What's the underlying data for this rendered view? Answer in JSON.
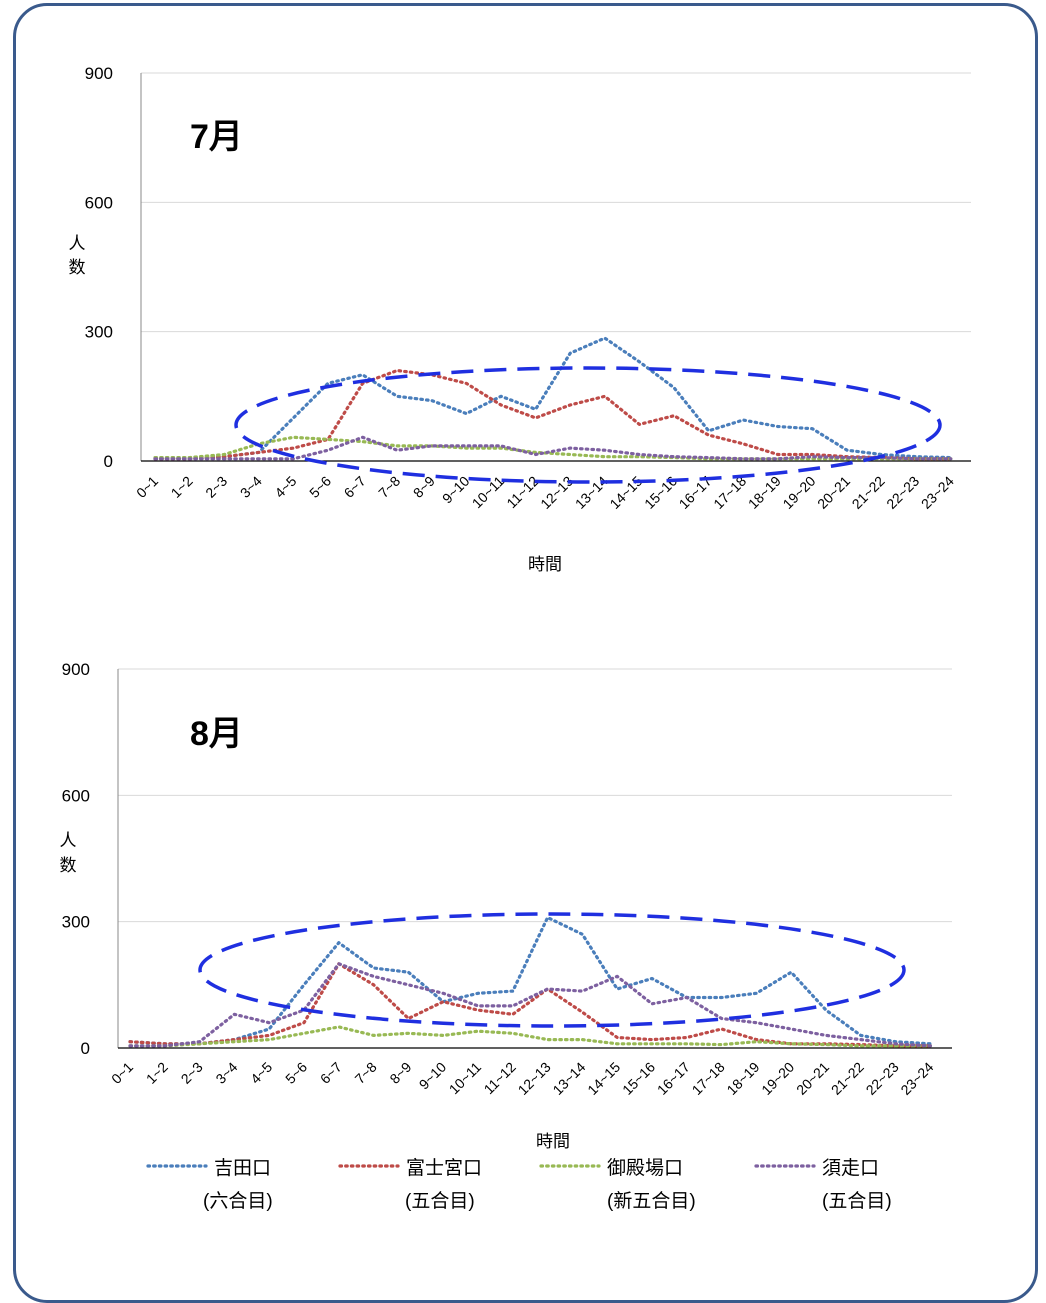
{
  "chart_data": [
    {
      "type": "line",
      "title": "7月",
      "xlabel": "時間",
      "ylabel": "人数",
      "ylim": [
        0,
        900
      ],
      "yticks": [
        0,
        300,
        600,
        900
      ],
      "grid": true,
      "categories": [
        "0~1",
        "1~2",
        "2~3",
        "3~4",
        "4~5",
        "5~6",
        "6~7",
        "7~8",
        "8~9",
        "9~10",
        "10~11",
        "11~12",
        "12~13",
        "13~14",
        "14~15",
        "15~16",
        "16~17",
        "17~18",
        "18~19",
        "19~20",
        "20~21",
        "21~22",
        "22~23",
        "23~24"
      ],
      "series": [
        {
          "name": "吉田口",
          "values": [
            5,
            5,
            10,
            20,
            100,
            180,
            200,
            150,
            140,
            110,
            150,
            120,
            250,
            285,
            230,
            170,
            70,
            95,
            80,
            75,
            25,
            15,
            10,
            8
          ]
        },
        {
          "name": "富士宮口",
          "values": [
            5,
            5,
            10,
            20,
            30,
            50,
            180,
            210,
            200,
            180,
            130,
            100,
            130,
            150,
            85,
            105,
            60,
            40,
            15,
            15,
            10,
            8,
            5,
            5
          ]
        },
        {
          "name": "御殿場口",
          "values": [
            8,
            8,
            15,
            40,
            55,
            50,
            45,
            35,
            35,
            30,
            30,
            20,
            15,
            10,
            10,
            8,
            5,
            5,
            5,
            5,
            5,
            5,
            5,
            5
          ]
        },
        {
          "name": "須走口",
          "values": [
            5,
            5,
            5,
            5,
            5,
            25,
            55,
            25,
            35,
            35,
            35,
            15,
            30,
            25,
            15,
            10,
            8,
            5,
            5,
            10,
            8,
            8,
            5,
            5
          ]
        }
      ],
      "highlight": {
        "shape": "ellipse",
        "color": "#1f2fe0"
      }
    },
    {
      "type": "line",
      "title": "8月",
      "xlabel": "時間",
      "ylabel": "人数",
      "ylim": [
        0,
        900
      ],
      "yticks": [
        0,
        300,
        600,
        900
      ],
      "grid": true,
      "categories": [
        "0~1",
        "1~2",
        "2~3",
        "3~4",
        "4~5",
        "5~6",
        "6~7",
        "7~8",
        "8~9",
        "9~10",
        "10~11",
        "11~12",
        "12~13",
        "13~14",
        "14~15",
        "15~16",
        "16~17",
        "17~18",
        "18~19",
        "19~20",
        "20~21",
        "21~22",
        "22~23",
        "23~24"
      ],
      "series": [
        {
          "name": "吉田口",
          "values": [
            15,
            10,
            10,
            20,
            45,
            150,
            250,
            190,
            180,
            110,
            130,
            135,
            310,
            270,
            140,
            165,
            120,
            120,
            130,
            180,
            90,
            30,
            15,
            10
          ]
        },
        {
          "name": "富士宮口",
          "values": [
            15,
            10,
            10,
            20,
            30,
            60,
            200,
            150,
            70,
            110,
            90,
            80,
            140,
            85,
            25,
            20,
            25,
            45,
            20,
            10,
            10,
            8,
            5,
            5
          ]
        },
        {
          "name": "御殿場口",
          "values": [
            5,
            5,
            10,
            15,
            20,
            35,
            50,
            30,
            35,
            30,
            40,
            35,
            20,
            20,
            10,
            10,
            10,
            8,
            15,
            10,
            8,
            5,
            5,
            5
          ]
        },
        {
          "name": "須走口",
          "values": [
            5,
            5,
            15,
            80,
            60,
            90,
            200,
            170,
            150,
            130,
            100,
            100,
            140,
            135,
            170,
            105,
            120,
            70,
            60,
            45,
            30,
            20,
            10,
            5
          ]
        }
      ],
      "highlight": {
        "shape": "ellipse",
        "color": "#1f2fe0"
      }
    }
  ],
  "legend": {
    "placement": "bottom",
    "items": [
      {
        "name": "吉田口",
        "sub": "(六合目)",
        "color": "#4a7ebb"
      },
      {
        "name": "富士宮口",
        "sub": "(五合目)",
        "color": "#be4b48"
      },
      {
        "name": "御殿場口",
        "sub": "(新五合目)",
        "color": "#98b954"
      },
      {
        "name": "須走口",
        "sub": "(五合目)",
        "color": "#7d60a0"
      }
    ]
  }
}
